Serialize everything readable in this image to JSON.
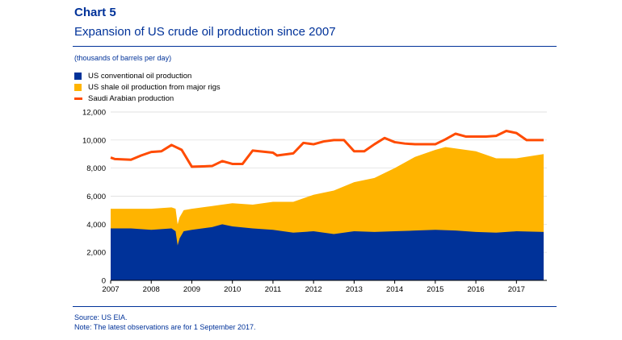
{
  "header": {
    "title": "Chart 5",
    "subtitle": "Expansion of US crude oil production since 2007",
    "unit": "(thousands of barrels per day)"
  },
  "footer": {
    "source": "Source: US EIA.",
    "note": "Note: The latest observations are for 1 September 2017."
  },
  "colors": {
    "conventional": "#003299",
    "shale": "#ffb400",
    "saudi": "#ff4b00",
    "text_accent": "#003299"
  },
  "chart_data": {
    "type": "area",
    "title": "Expansion of US crude oil production since 2007",
    "ylabel": "(thousands of barrels per day)",
    "xlim": [
      2007.0,
      2017.75
    ],
    "ylim": [
      0,
      12000
    ],
    "yticks": [
      "0",
      "2,000",
      "4,000",
      "6,000",
      "8,000",
      "10,000",
      "12,000"
    ],
    "xticks": [
      "2007",
      "2008",
      "2009",
      "2010",
      "2011",
      "2012",
      "2013",
      "2014",
      "2015",
      "2016",
      "2017"
    ],
    "grid": true,
    "legend": "top-left",
    "series": [
      {
        "name": "US conventional oil production",
        "type": "area",
        "stack": "base",
        "x": [
          2007.0,
          2007.5,
          2008.0,
          2008.5,
          2008.6,
          2008.65,
          2008.7,
          2008.8,
          2009.0,
          2009.5,
          2009.75,
          2010.0,
          2010.5,
          2011.0,
          2011.5,
          2012.0,
          2012.5,
          2013.0,
          2013.5,
          2014.0,
          2014.5,
          2015.0,
          2015.5,
          2016.0,
          2016.5,
          2017.0,
          2017.67
        ],
        "values": [
          3700,
          3700,
          3600,
          3700,
          3500,
          2500,
          3000,
          3500,
          3600,
          3800,
          4000,
          3850,
          3700,
          3600,
          3400,
          3500,
          3300,
          3500,
          3450,
          3500,
          3550,
          3600,
          3550,
          3450,
          3400,
          3500,
          3450
        ]
      },
      {
        "name": "US shale oil production from major rigs",
        "type": "area",
        "stack": "total",
        "x": [
          2007.0,
          2007.5,
          2008.0,
          2008.5,
          2008.6,
          2008.65,
          2008.7,
          2008.8,
          2009.0,
          2009.5,
          2010.0,
          2010.5,
          2011.0,
          2011.5,
          2012.0,
          2012.5,
          2013.0,
          2013.5,
          2014.0,
          2014.5,
          2015.0,
          2015.25,
          2015.5,
          2016.0,
          2016.5,
          2017.0,
          2017.67
        ],
        "values": [
          5100,
          5100,
          5100,
          5200,
          5100,
          4000,
          4500,
          5000,
          5100,
          5300,
          5500,
          5400,
          5600,
          5600,
          6100,
          6400,
          7000,
          7300,
          8000,
          8800,
          9300,
          9500,
          9400,
          9200,
          8700,
          8700,
          9000
        ]
      },
      {
        "name": "Saudi Arabian production",
        "type": "line",
        "x": [
          2007.0,
          2007.1,
          2007.5,
          2007.75,
          2008.0,
          2008.25,
          2008.5,
          2008.75,
          2009.0,
          2009.5,
          2009.75,
          2010.0,
          2010.25,
          2010.5,
          2011.0,
          2011.1,
          2011.5,
          2011.75,
          2012.0,
          2012.25,
          2012.5,
          2012.75,
          2013.0,
          2013.25,
          2013.5,
          2013.75,
          2014.0,
          2014.25,
          2014.5,
          2014.75,
          2015.0,
          2015.25,
          2015.5,
          2015.75,
          2016.0,
          2016.25,
          2016.5,
          2016.75,
          2017.0,
          2017.25,
          2017.67
        ],
        "values": [
          8750,
          8650,
          8600,
          8900,
          9150,
          9200,
          9650,
          9300,
          8100,
          8150,
          8500,
          8300,
          8300,
          9250,
          9100,
          8900,
          9050,
          9800,
          9700,
          9900,
          10000,
          10000,
          9200,
          9200,
          9700,
          10150,
          9850,
          9750,
          9700,
          9700,
          9700,
          10050,
          10450,
          10250,
          10250,
          10250,
          10300,
          10650,
          10500,
          10000,
          10000
        ]
      }
    ]
  }
}
